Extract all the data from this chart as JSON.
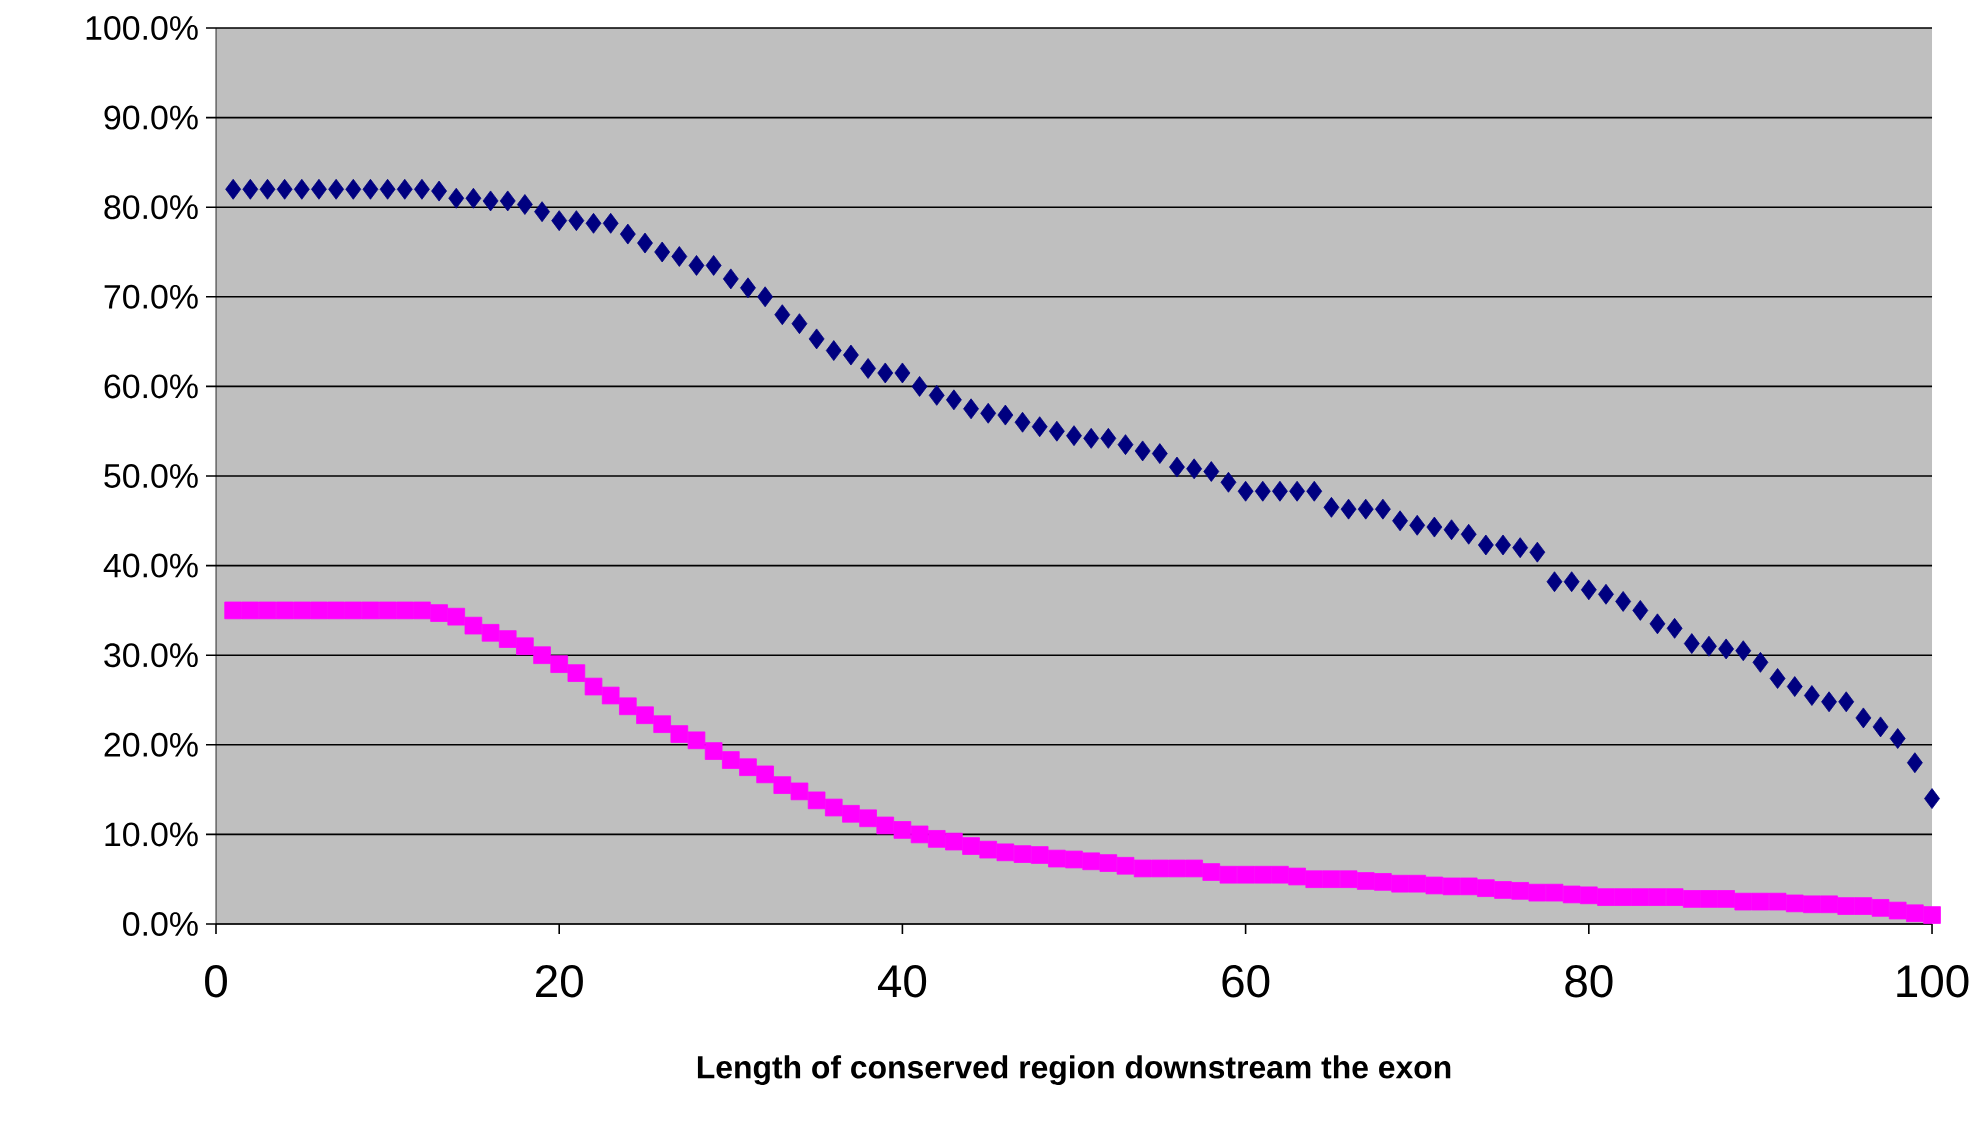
{
  "chart_data": {
    "type": "scatter",
    "xlabel": "Length of conserved region downstream the exon",
    "x": [
      1,
      2,
      3,
      4,
      5,
      6,
      7,
      8,
      9,
      10,
      11,
      12,
      13,
      14,
      15,
      16,
      17,
      18,
      19,
      20,
      21,
      22,
      23,
      24,
      25,
      26,
      27,
      28,
      29,
      30,
      31,
      32,
      33,
      34,
      35,
      36,
      37,
      38,
      39,
      40,
      41,
      42,
      43,
      44,
      45,
      46,
      47,
      48,
      49,
      50,
      51,
      52,
      53,
      54,
      55,
      56,
      57,
      58,
      59,
      60,
      61,
      62,
      63,
      64,
      65,
      66,
      67,
      68,
      69,
      70,
      71,
      72,
      73,
      74,
      75,
      76,
      77,
      78,
      79,
      80,
      81,
      82,
      83,
      84,
      85,
      86,
      87,
      88,
      89,
      90,
      91,
      92,
      93,
      94,
      95,
      96,
      97,
      98,
      99,
      100
    ],
    "series": [
      {
        "color": "#000080",
        "marker": "diamond",
        "values": [
          82.0,
          82.0,
          82.0,
          82.0,
          82.0,
          82.0,
          82.0,
          82.0,
          82.0,
          82.0,
          82.0,
          82.0,
          81.8,
          81.0,
          81.0,
          80.7,
          80.7,
          80.3,
          79.5,
          78.5,
          78.5,
          78.2,
          78.2,
          77.0,
          76.0,
          75.0,
          74.5,
          73.5,
          73.5,
          72.0,
          71.0,
          70.0,
          68.0,
          67.0,
          65.3,
          64.0,
          63.5,
          62.0,
          61.5,
          61.5,
          60.0,
          59.0,
          58.5,
          57.5,
          57.0,
          56.8,
          56.0,
          55.5,
          55.0,
          54.5,
          54.2,
          54.2,
          53.5,
          52.8,
          52.5,
          51.0,
          50.8,
          50.5,
          49.3,
          48.3,
          48.3,
          48.3,
          48.3,
          48.3,
          46.5,
          46.3,
          46.3,
          46.3,
          45.0,
          44.5,
          44.3,
          44.0,
          43.5,
          42.3,
          42.3,
          42.0,
          41.5,
          38.2,
          38.2,
          37.3,
          36.8,
          36.0,
          35.0,
          33.5,
          33.0,
          31.3,
          31.0,
          30.7,
          30.5,
          29.2,
          27.4,
          26.5,
          25.5,
          24.8,
          24.8,
          23.0,
          22.0,
          20.7,
          18.0,
          14.0
        ]
      },
      {
        "color": "#ff00ff",
        "marker": "square",
        "values": [
          35.0,
          35.0,
          35.0,
          35.0,
          35.0,
          35.0,
          35.0,
          35.0,
          35.0,
          35.0,
          35.0,
          35.0,
          34.7,
          34.3,
          33.3,
          32.5,
          31.8,
          31.0,
          30.0,
          29.0,
          28.0,
          26.5,
          25.5,
          24.3,
          23.3,
          22.3,
          21.2,
          20.5,
          19.3,
          18.3,
          17.5,
          16.7,
          15.5,
          14.8,
          13.8,
          13.0,
          12.3,
          11.8,
          11.0,
          10.5,
          10.0,
          9.5,
          9.2,
          8.7,
          8.3,
          8.0,
          7.8,
          7.7,
          7.3,
          7.2,
          7.0,
          6.8,
          6.5,
          6.2,
          6.2,
          6.2,
          6.2,
          5.8,
          5.5,
          5.5,
          5.5,
          5.5,
          5.3,
          5.0,
          5.0,
          5.0,
          4.8,
          4.7,
          4.5,
          4.5,
          4.3,
          4.2,
          4.2,
          4.0,
          3.8,
          3.7,
          3.5,
          3.5,
          3.3,
          3.2,
          3.0,
          3.0,
          3.0,
          3.0,
          3.0,
          2.8,
          2.8,
          2.8,
          2.5,
          2.5,
          2.5,
          2.3,
          2.2,
          2.2,
          2.0,
          2.0,
          1.8,
          1.5,
          1.2,
          1.0
        ]
      }
    ],
    "xlim": [
      0,
      100
    ],
    "xticks": [
      0,
      20,
      40,
      60,
      80,
      100
    ],
    "ylim": [
      0,
      100
    ],
    "yticks": [
      {
        "value": 0,
        "label": "0.0%"
      },
      {
        "value": 10,
        "label": "10.0%"
      },
      {
        "value": 20,
        "label": "20.0%"
      },
      {
        "value": 30,
        "label": "30.0%"
      },
      {
        "value": 40,
        "label": "40.0%"
      },
      {
        "value": 50,
        "label": "50.0%"
      },
      {
        "value": 60,
        "label": "60.0%"
      },
      {
        "value": 70,
        "label": "70.0%"
      },
      {
        "value": 80,
        "label": "80.0%"
      },
      {
        "value": 90,
        "label": "90.0%"
      },
      {
        "value": 100,
        "label": "100.0%"
      }
    ],
    "grid": "y"
  }
}
